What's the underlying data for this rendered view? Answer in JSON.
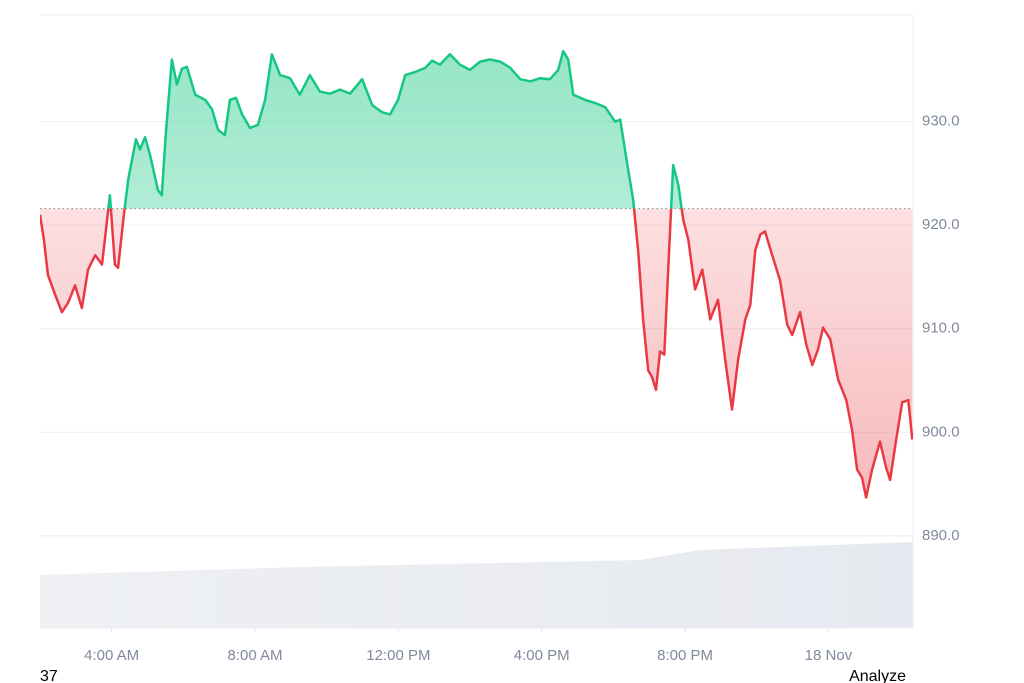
{
  "chart_data": {
    "type": "line",
    "x": [
      2.0,
      2.11,
      2.22,
      2.42,
      2.61,
      2.78,
      2.98,
      3.17,
      3.34,
      3.54,
      3.73,
      3.95,
      4.09,
      4.18,
      4.34,
      4.46,
      4.68,
      4.79,
      4.93,
      5.07,
      5.29,
      5.4,
      5.52,
      5.68,
      5.82,
      5.96,
      6.1,
      6.33,
      6.61,
      6.8,
      6.97,
      7.16,
      7.3,
      7.47,
      7.64,
      7.86,
      8.08,
      8.28,
      8.47,
      8.7,
      8.98,
      9.25,
      9.53,
      9.81,
      10.09,
      10.37,
      10.65,
      10.99,
      11.27,
      11.55,
      11.77,
      11.99,
      12.19,
      12.47,
      12.75,
      12.94,
      13.16,
      13.44,
      13.72,
      14.0,
      14.28,
      14.56,
      14.84,
      15.12,
      15.4,
      15.68,
      15.96,
      16.23,
      16.46,
      16.6,
      16.74,
      16.88,
      17.21,
      17.49,
      17.77,
      18.05,
      18.19,
      18.39,
      18.55,
      18.69,
      18.83,
      18.97,
      19.08,
      19.19,
      19.3,
      19.42,
      19.53,
      19.67,
      19.81,
      19.95,
      20.09,
      20.28,
      20.48,
      20.7,
      20.92,
      21.12,
      21.31,
      21.48,
      21.68,
      21.82,
      21.96,
      22.1,
      22.23,
      22.43,
      22.65,
      22.85,
      22.99,
      23.21,
      23.38,
      23.55,
      23.71,
      23.85,
      24.05,
      24.27,
      24.5,
      24.66,
      24.8,
      24.94,
      25.05,
      25.22,
      25.44,
      25.61,
      25.72,
      25.89,
      26.06,
      26.23,
      26.34
    ],
    "values": [
      921.0,
      918.6,
      915.2,
      913.3,
      911.6,
      912.5,
      914.2,
      912.0,
      915.7,
      917.1,
      916.2,
      922.9,
      916.2,
      915.9,
      921.0,
      924.4,
      928.3,
      927.3,
      928.5,
      926.8,
      923.4,
      922.9,
      929.2,
      936.0,
      933.6,
      935.1,
      935.3,
      932.6,
      932.1,
      931.2,
      929.2,
      928.7,
      932.1,
      932.3,
      930.7,
      929.4,
      929.7,
      932.1,
      936.5,
      934.5,
      934.2,
      932.6,
      934.5,
      932.9,
      932.7,
      933.1,
      932.7,
      934.1,
      931.6,
      930.9,
      930.7,
      932.1,
      934.5,
      934.8,
      935.2,
      935.9,
      935.5,
      936.5,
      935.5,
      935.0,
      935.8,
      936.0,
      935.8,
      935.2,
      934.1,
      933.9,
      934.2,
      934.1,
      935.0,
      936.8,
      936.0,
      932.6,
      932.1,
      931.8,
      931.4,
      930.0,
      930.2,
      925.8,
      922.5,
      917.6,
      910.9,
      906.0,
      905.3,
      904.1,
      907.8,
      907.5,
      915.7,
      925.8,
      923.9,
      920.5,
      918.6,
      913.8,
      915.7,
      910.9,
      912.8,
      907.0,
      902.2,
      907.0,
      910.9,
      912.3,
      917.6,
      919.1,
      919.4,
      917.1,
      914.7,
      910.4,
      909.4,
      911.6,
      908.5,
      906.5,
      908.0,
      910.1,
      909.0,
      905.1,
      903.1,
      900.2,
      896.4,
      895.6,
      893.7,
      896.4,
      899.1,
      896.6,
      895.4,
      899.3,
      902.9,
      903.1,
      899.3
    ],
    "baseline": 921.6,
    "up_color": "#16c784",
    "down_color": "#ea3943",
    "xlim": [
      2,
      26.36
    ],
    "xticks": [
      {
        "value": 4,
        "label": "4:00 AM"
      },
      {
        "value": 8,
        "label": "8:00 AM"
      },
      {
        "value": 12,
        "label": "12:00 PM"
      },
      {
        "value": 16,
        "label": "4:00 PM"
      },
      {
        "value": 20,
        "label": "8:00 PM"
      },
      {
        "value": 24,
        "label": "18 Nov"
      }
    ],
    "ylim": [
      881.1,
      940.3
    ],
    "yticks": [
      {
        "value": 890,
        "label": "890.0"
      },
      {
        "value": 900,
        "label": "900.0"
      },
      {
        "value": 910,
        "label": "910.0"
      },
      {
        "value": 920,
        "label": "920.0"
      },
      {
        "value": 930,
        "label": "930.0"
      }
    ],
    "grid": true
  },
  "footer": {
    "left": "37",
    "right": "Analyze"
  }
}
